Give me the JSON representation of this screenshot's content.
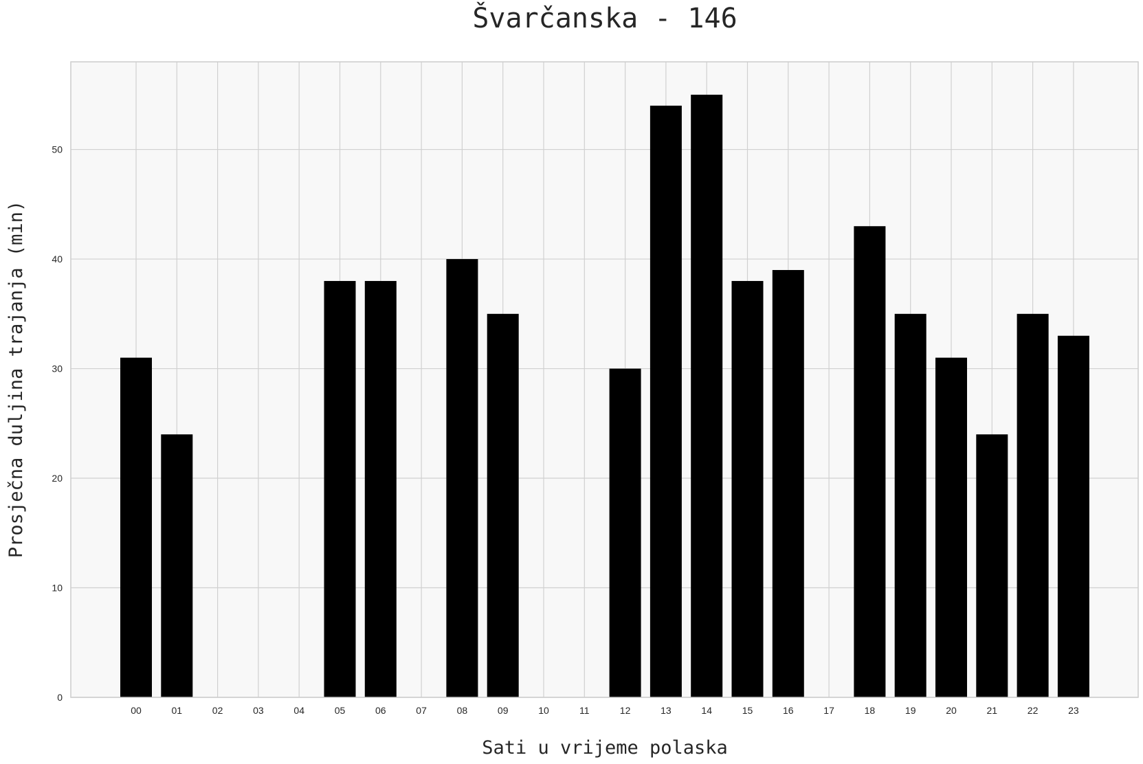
{
  "chart_data": {
    "type": "bar",
    "title": "Švarčanska - 146",
    "xlabel": "Sati u vrijeme polaska",
    "ylabel": "Prosječna duljina trajanja (min)",
    "categories": [
      "00",
      "01",
      "02",
      "03",
      "04",
      "05",
      "06",
      "07",
      "08",
      "09",
      "10",
      "11",
      "12",
      "13",
      "14",
      "15",
      "16",
      "17",
      "18",
      "19",
      "20",
      "21",
      "22",
      "23"
    ],
    "values": [
      31,
      24,
      0,
      0,
      0,
      38,
      38,
      0,
      40,
      35,
      0,
      0,
      30,
      54,
      55,
      38,
      39,
      0,
      43,
      35,
      31,
      24,
      35,
      33
    ],
    "ylim": [
      0,
      58
    ],
    "yticks": [
      0,
      10,
      20,
      30,
      40,
      50
    ],
    "grid": true,
    "colors": {
      "bar": "#000000",
      "plot_bg": "#f8f8f8",
      "grid": "#d0d0d0",
      "frame": "#cccccc"
    }
  }
}
